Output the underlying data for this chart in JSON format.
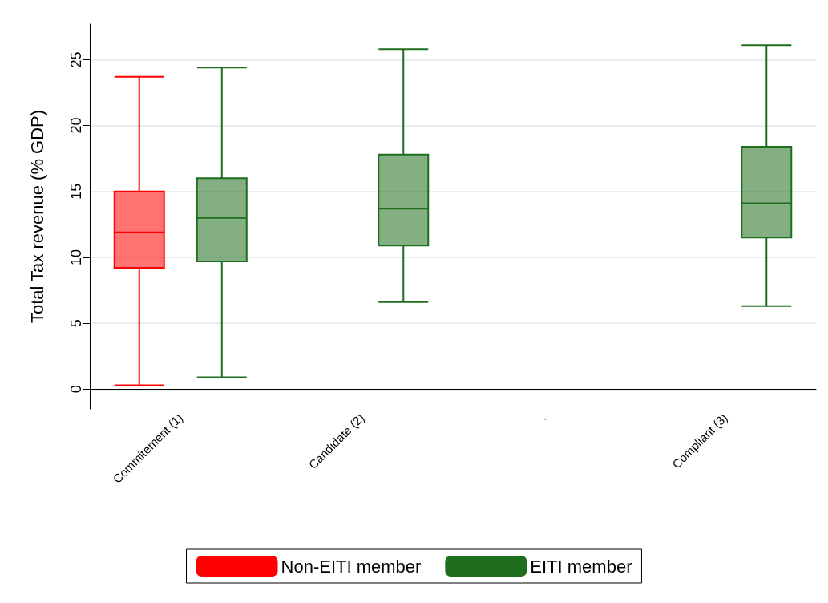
{
  "chart_data": {
    "type": "box",
    "ylabel": "Total Tax revenue (% GDP)",
    "categories": [
      "Commitement (1)",
      "Candidate (2)",
      ".",
      "Compliant (3)"
    ],
    "series": [
      {
        "name": "Non-EITI member",
        "color": "#ff0000",
        "boxes": [
          {
            "low": 0.3,
            "q1": 9.2,
            "median": 11.9,
            "q3": 15.0,
            "high": 23.7
          },
          null,
          null,
          null
        ]
      },
      {
        "name": "EITI member",
        "color": "#1e6e1e",
        "boxes": [
          {
            "low": 0.9,
            "q1": 9.7,
            "median": 13.0,
            "q3": 16.0,
            "high": 24.4
          },
          {
            "low": 6.6,
            "q1": 10.9,
            "median": 13.7,
            "q3": 17.8,
            "high": 25.8
          },
          null,
          {
            "low": 6.3,
            "q1": 11.5,
            "median": 14.1,
            "q3": 18.4,
            "high": 26.1
          }
        ]
      }
    ],
    "ylim": [
      -1.5,
      27.7
    ],
    "yticks": [
      0,
      5,
      10,
      15,
      20,
      25
    ],
    "grid": "y",
    "legend": "bottom"
  }
}
